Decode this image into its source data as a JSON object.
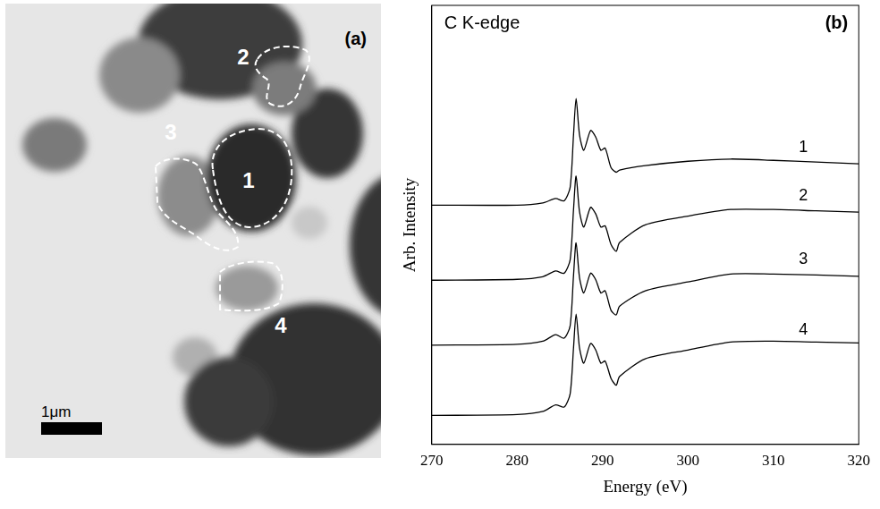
{
  "image_panel": {
    "panel_label": "(a)",
    "regions": [
      {
        "label": "1"
      },
      {
        "label": "2"
      },
      {
        "label": "3"
      },
      {
        "label": "4"
      }
    ],
    "scale_bar": "1μm"
  },
  "chart_data": {
    "type": "line",
    "title": "C K-edge",
    "panel_label": "(b)",
    "x_label": "Energy (eV)",
    "y_label": "Arb. Intensity",
    "x": [
      270,
      280,
      283,
      284.5,
      285.5,
      286.2,
      286.6,
      286.9,
      287.3,
      287.8,
      288.6,
      289.2,
      289.8,
      290.3,
      291,
      291.6,
      292,
      295,
      300,
      305,
      310,
      315,
      320
    ],
    "series": [
      {
        "name": "1",
        "color": "#000000",
        "values": [
          5.45,
          5.45,
          5.5,
          5.6,
          5.55,
          5.85,
          7.05,
          7.88,
          7.05,
          6.7,
          7.15,
          7.0,
          6.7,
          6.75,
          6.3,
          6.2,
          6.25,
          6.35,
          6.45,
          6.5,
          6.47,
          6.43,
          6.39
        ]
      },
      {
        "name": "2",
        "color": "#000000",
        "values": [
          3.74,
          3.76,
          3.82,
          3.95,
          3.9,
          4.2,
          5.35,
          6.11,
          5.3,
          4.95,
          5.4,
          5.25,
          4.95,
          4.98,
          4.55,
          4.4,
          4.6,
          5.0,
          5.2,
          5.35,
          5.35,
          5.32,
          5.29
        ]
      },
      {
        "name": "3",
        "color": "#000000",
        "values": [
          2.26,
          2.28,
          2.35,
          2.5,
          2.42,
          2.7,
          3.85,
          4.59,
          3.8,
          3.45,
          3.9,
          3.75,
          3.45,
          3.5,
          3.05,
          2.95,
          3.15,
          3.5,
          3.7,
          3.88,
          3.88,
          3.86,
          3.83
        ]
      },
      {
        "name": "4",
        "color": "#000000",
        "values": [
          0.66,
          0.68,
          0.75,
          0.9,
          0.85,
          1.15,
          2.2,
          2.97,
          2.2,
          1.85,
          2.3,
          2.15,
          1.85,
          1.9,
          1.5,
          1.35,
          1.55,
          1.95,
          2.15,
          2.33,
          2.35,
          2.33,
          2.31
        ]
      }
    ],
    "annotations": [
      {
        "text": "1",
        "x": 313.5,
        "y": 6.75
      },
      {
        "text": "2",
        "x": 313.5,
        "y": 5.65
      },
      {
        "text": "3",
        "x": 313.5,
        "y": 4.22
      },
      {
        "text": "4",
        "x": 313.5,
        "y": 2.6
      }
    ],
    "xlim": [
      270,
      320
    ],
    "xticks": [
      270,
      280,
      290,
      300,
      310,
      320
    ],
    "ylim": [
      0,
      10
    ],
    "yticks": [],
    "grid": false,
    "tick_labels": "x"
  }
}
